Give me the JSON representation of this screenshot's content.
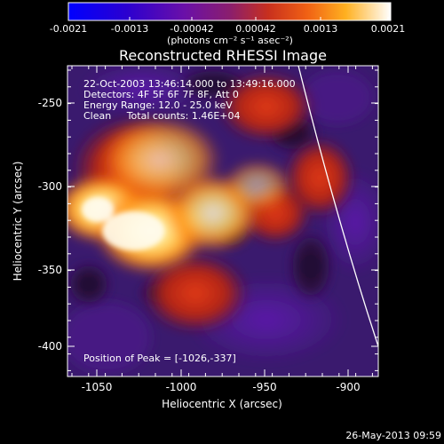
{
  "colorbar": {
    "tick_labels": [
      "-0.0021",
      "-0.0013",
      "-0.00042",
      "0.00042",
      "0.0013",
      "0.0021"
    ],
    "units_label": "(photons cm⁻² s⁻¹ asec⁻²)"
  },
  "plot": {
    "title": "Reconstructed RHESSI Image",
    "xlabel": "Heliocentric X (arcsec)",
    "ylabel": "Heliocentric Y (arcsec)",
    "x_ticks": [
      "-1050",
      "-1000",
      "-950",
      "-900"
    ],
    "y_ticks": [
      "-250",
      "-300",
      "-350",
      "-400"
    ],
    "annotations": {
      "time_range": "22-Oct-2003 13:46:14.000 to 13:49:16.000",
      "detectors": "Detectors: 4F 5F 6F 7F 8F, Att 0",
      "energy_range": "Energy Range: 12.0 - 25.0 keV",
      "clean": "Clean     Total counts: 1.46E+04",
      "peak": "Position of Peak = [-1026,-337]"
    }
  },
  "footer": {
    "timestamp": "26-May-2013 09:59"
  },
  "image_colors": {
    "background": "#000000",
    "colormap": [
      "#0000ff",
      "#2b00c8",
      "#7a1aa8",
      "#6e2078",
      "#b02a2a",
      "#e24a1a",
      "#ff8a10",
      "#ffd030",
      "#fffbe6"
    ]
  }
}
